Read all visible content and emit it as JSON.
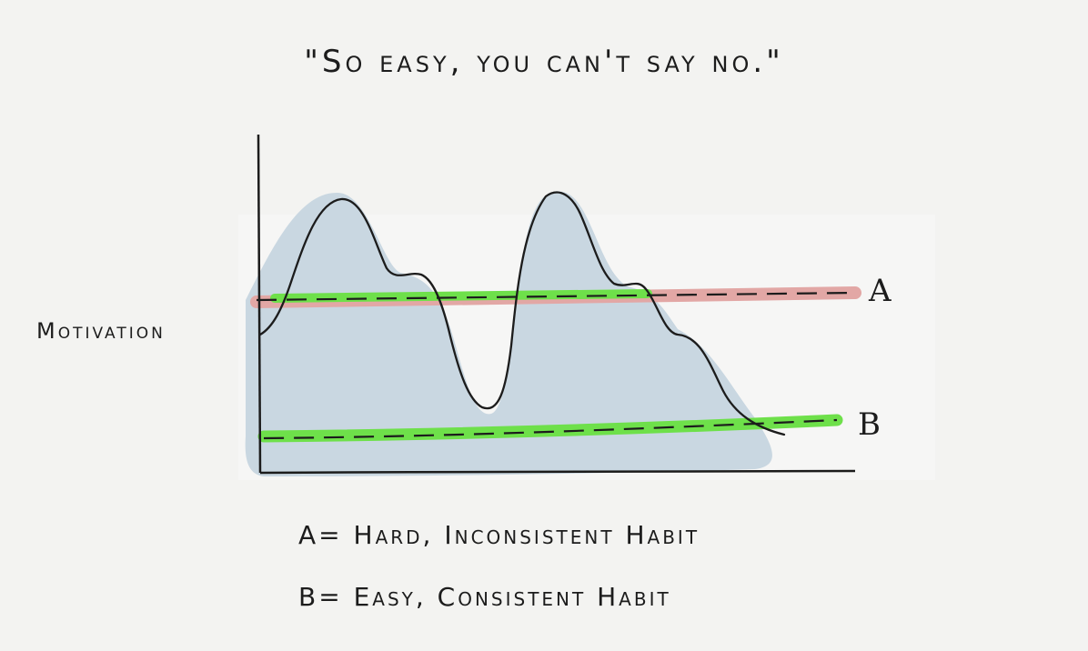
{
  "title": "\"So easy, you can't say no.\"",
  "y_axis_label": "Motivation",
  "lines": {
    "a": {
      "label": "A"
    },
    "b": {
      "label": "B"
    }
  },
  "legend": [
    {
      "text": "A= Hard, Inconsistent Habit"
    },
    {
      "text": "B= Easy, Consistent Habit"
    }
  ],
  "colors": {
    "background": "#f3f3f1",
    "motivation_fill": "#c9d7e1",
    "line_a_highlight": "#e2a7a5",
    "green_highlight": "#6ee04a",
    "ink": "#1c1c1c"
  }
}
